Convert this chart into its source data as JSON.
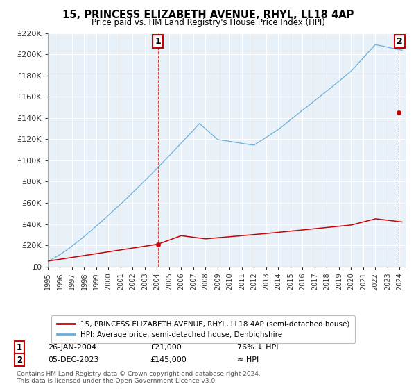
{
  "title": "15, PRINCESS ELIZABETH AVENUE, RHYL, LL18 4AP",
  "subtitle": "Price paid vs. HM Land Registry's House Price Index (HPI)",
  "ylim": [
    0,
    220000
  ],
  "yticks": [
    0,
    20000,
    40000,
    60000,
    80000,
    100000,
    120000,
    140000,
    160000,
    180000,
    200000,
    220000
  ],
  "ytick_labels": [
    "£0",
    "£20K",
    "£40K",
    "£60K",
    "£80K",
    "£100K",
    "£120K",
    "£140K",
    "£160K",
    "£180K",
    "£200K",
    "£220K"
  ],
  "hpi_color": "#6baed6",
  "price_color": "#cc0000",
  "dashed_color": "#cc0000",
  "point1_x": 2004.07,
  "point1_y": 21000,
  "point1_label": "1",
  "point2_x": 2023.92,
  "point2_y": 145000,
  "point2_label": "2",
  "legend_line1": "15, PRINCESS ELIZABETH AVENUE, RHYL, LL18 4AP (semi-detached house)",
  "legend_line2": "HPI: Average price, semi-detached house, Denbighshire",
  "annotation1_date": "26-JAN-2004",
  "annotation1_price": "£21,000",
  "annotation1_hpi": "76% ↓ HPI",
  "annotation2_date": "05-DEC-2023",
  "annotation2_price": "£145,000",
  "annotation2_hpi": "≈ HPI",
  "footnote": "Contains HM Land Registry data © Crown copyright and database right 2024.\nThis data is licensed under the Open Government Licence v3.0.",
  "xmin": 1995,
  "xmax": 2024.5,
  "plot_bg": "#e8f0f8"
}
